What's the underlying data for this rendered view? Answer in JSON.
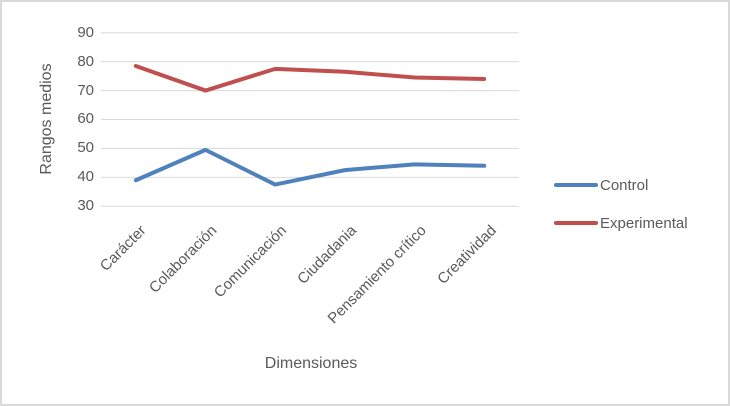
{
  "chart_data": {
    "type": "line",
    "categories": [
      "Carácter",
      "Colaboración",
      "Comunicación",
      "Ciudadania",
      "Pensamiento crítico",
      "Creatividad"
    ],
    "series": [
      {
        "name": "Control",
        "color": "#4F81BD",
        "values": [
          39,
          49.5,
          37.5,
          42.5,
          44.5,
          44
        ]
      },
      {
        "name": "Experimental",
        "color": "#C0504D",
        "values": [
          78.5,
          70,
          77.5,
          76.5,
          74.5,
          74
        ]
      }
    ],
    "xlabel": "Dimensiones",
    "ylabel": "Rangos medios",
    "ylim": [
      30,
      90
    ],
    "yticks": [
      30,
      40,
      50,
      60,
      70,
      80,
      90
    ],
    "grid": "horizontal",
    "legend_position": "right",
    "text_color": "#595959",
    "gridline_color": "#D9D9D9",
    "plot_background": "#FFFFFF",
    "border_color": "#D9D9D9"
  }
}
